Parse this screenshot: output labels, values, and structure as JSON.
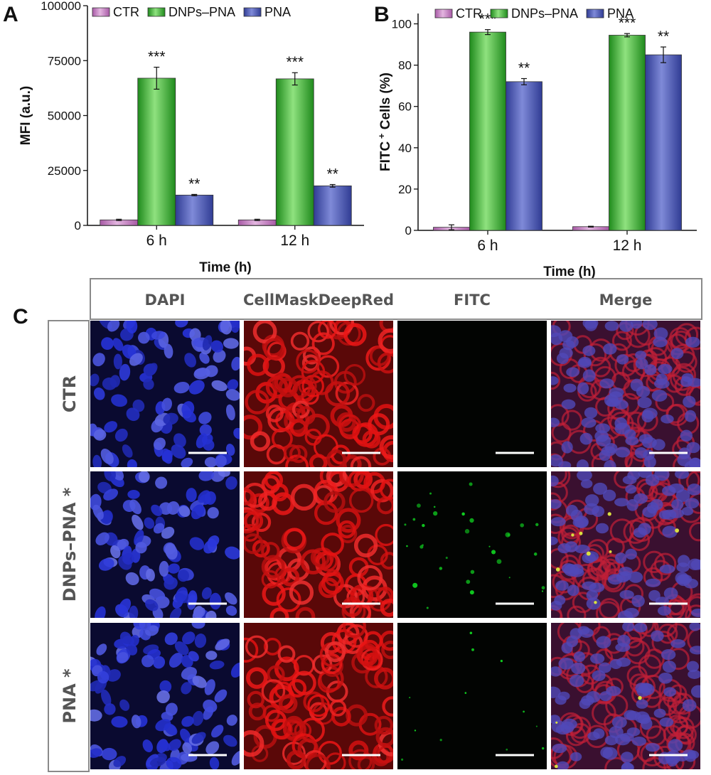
{
  "panels": {
    "a": "A",
    "b": "B",
    "c": "C"
  },
  "chart_data": [
    {
      "type": "bar",
      "categories": [
        "6 h",
        "12 h"
      ],
      "series": [
        {
          "name": "CTR",
          "values": [
            2500,
            2500
          ],
          "errors": [
            300,
            300
          ],
          "color": "#c77fc4",
          "sig": [
            "",
            ""
          ]
        },
        {
          "name": "DNPs–PNA",
          "values": [
            67000,
            66700
          ],
          "errors": [
            5000,
            2800
          ],
          "color": "#3fb43a",
          "sig": [
            "***",
            "***"
          ]
        },
        {
          "name": "PNA",
          "values": [
            13800,
            18000
          ],
          "errors": [
            300,
            600
          ],
          "color": "#4f5bb3",
          "sig": [
            "**",
            "**"
          ]
        }
      ],
      "xlabel": "Time (h)",
      "ylabel": "MFI (a.u.)",
      "ylim": [
        0,
        100000
      ],
      "yticks": [
        "0",
        "25000",
        "50000",
        "75000",
        "100000"
      ],
      "ytick_values": [
        0,
        25000,
        50000,
        75000,
        100000
      ],
      "legend_position": "top"
    },
    {
      "type": "bar",
      "categories": [
        "6 h",
        "12 h"
      ],
      "series": [
        {
          "name": "CTR",
          "values": [
            1.5,
            1.8
          ],
          "errors": [
            1.2,
            0.2
          ],
          "color": "#c77fc4",
          "sig": [
            "",
            ""
          ]
        },
        {
          "name": "DNPs–PNA",
          "values": [
            96,
            94.5
          ],
          "errors": [
            1.2,
            0.8
          ],
          "color": "#3fb43a",
          "sig": [
            "***",
            "***"
          ]
        },
        {
          "name": "PNA",
          "values": [
            72,
            85
          ],
          "errors": [
            1.5,
            3.8
          ],
          "color": "#4f5bb3",
          "sig": [
            "**",
            "**"
          ]
        }
      ],
      "xlabel": "Time (h)",
      "ylabel_main": "FITC",
      "ylabel_sup": "+",
      "ylabel_rest": " Cells (%)",
      "ylim": [
        0,
        105
      ],
      "yticks": [
        "0",
        "20",
        "40",
        "60",
        "80",
        "100"
      ],
      "ytick_values": [
        0,
        20,
        40,
        60,
        80,
        100
      ],
      "legend_position": "top"
    }
  ],
  "microscopy": {
    "columns": [
      "DAPI",
      "CellMaskDeepRed",
      "FITC",
      "Merge"
    ],
    "rows": [
      "CTR",
      "DNPs–PNA *",
      "PNA *"
    ],
    "channel_colors": {
      "DAPI": "#3848c8",
      "CellMaskDeepRed": "#c41818",
      "FITC": "#10d020",
      "Merge_nuclei": "#5048b8",
      "Merge_membrane": "#c02038"
    },
    "fitc_levels": [
      0,
      0.8,
      0.3
    ]
  }
}
